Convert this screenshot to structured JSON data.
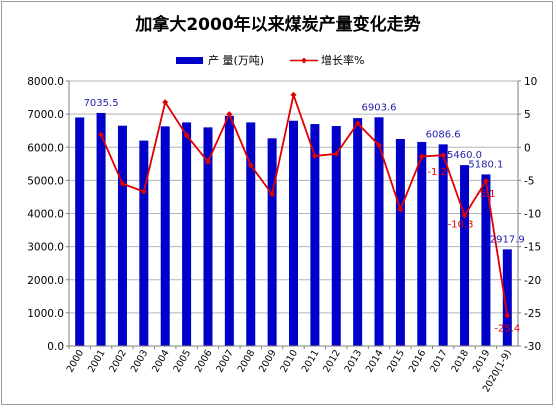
{
  "chart_data": {
    "type": "bar",
    "title": "加拿大2000年以来煤炭产量变化走势",
    "categories": [
      "2000",
      "2001",
      "2002",
      "2003",
      "2004",
      "2005",
      "2006",
      "2007",
      "2008",
      "2009",
      "2010",
      "2011",
      "2012",
      "2013",
      "2014",
      "2015",
      "2016",
      "2017",
      "2018",
      "2019",
      "2020(1-9)"
    ],
    "series": [
      {
        "name": "产 量(万吨)",
        "type": "bar",
        "axis": "left",
        "color": "#0000c8",
        "values": [
          6900,
          7035.5,
          6650,
          6200,
          6630,
          6750,
          6600,
          6950,
          6750,
          6270,
          6800,
          6700,
          6640,
          6880,
          6903.6,
          6250,
          6160,
          6086.6,
          5460.0,
          5180.1,
          2917.9
        ]
      },
      {
        "name": "增长率%",
        "type": "line",
        "axis": "right",
        "color": "#e00000",
        "values": [
          null,
          1.9,
          -5.5,
          -6.7,
          6.8,
          1.8,
          -2.2,
          5.0,
          -2.7,
          -7.1,
          7.9,
          -1.3,
          -1.0,
          3.6,
          0.3,
          -9.4,
          -1.4,
          -1.2,
          -10.3,
          -5.1,
          -25.4
        ]
      }
    ],
    "bar_data_labels": [
      {
        "category": "2001",
        "text": "7035.5"
      },
      {
        "category": "2014",
        "text": "6903.6"
      },
      {
        "category": "2017",
        "text": "6086.6"
      },
      {
        "category": "2018",
        "text": "5460.0"
      },
      {
        "category": "2019",
        "text": "5180.1"
      },
      {
        "category": "2020(1-9)",
        "text": "2917.9"
      }
    ],
    "line_data_labels": [
      {
        "category": "2017",
        "text": "-1.2"
      },
      {
        "category": "2018",
        "text": "-10.3"
      },
      {
        "category": "2019",
        "text": "-5.1"
      },
      {
        "category": "2020(1-9)",
        "text": "-25.4"
      }
    ],
    "ylim": [
      0,
      8000
    ],
    "yticks": [
      "0.0",
      "1000.0",
      "2000.0",
      "3000.0",
      "4000.0",
      "5000.0",
      "6000.0",
      "7000.0",
      "8000.0"
    ],
    "y2lim": [
      -30,
      10
    ],
    "y2ticks": [
      "-30",
      "-25",
      "-20",
      "-15",
      "-10",
      "-5",
      "0",
      "5",
      "10"
    ],
    "grid": true,
    "legend_position": "top"
  }
}
